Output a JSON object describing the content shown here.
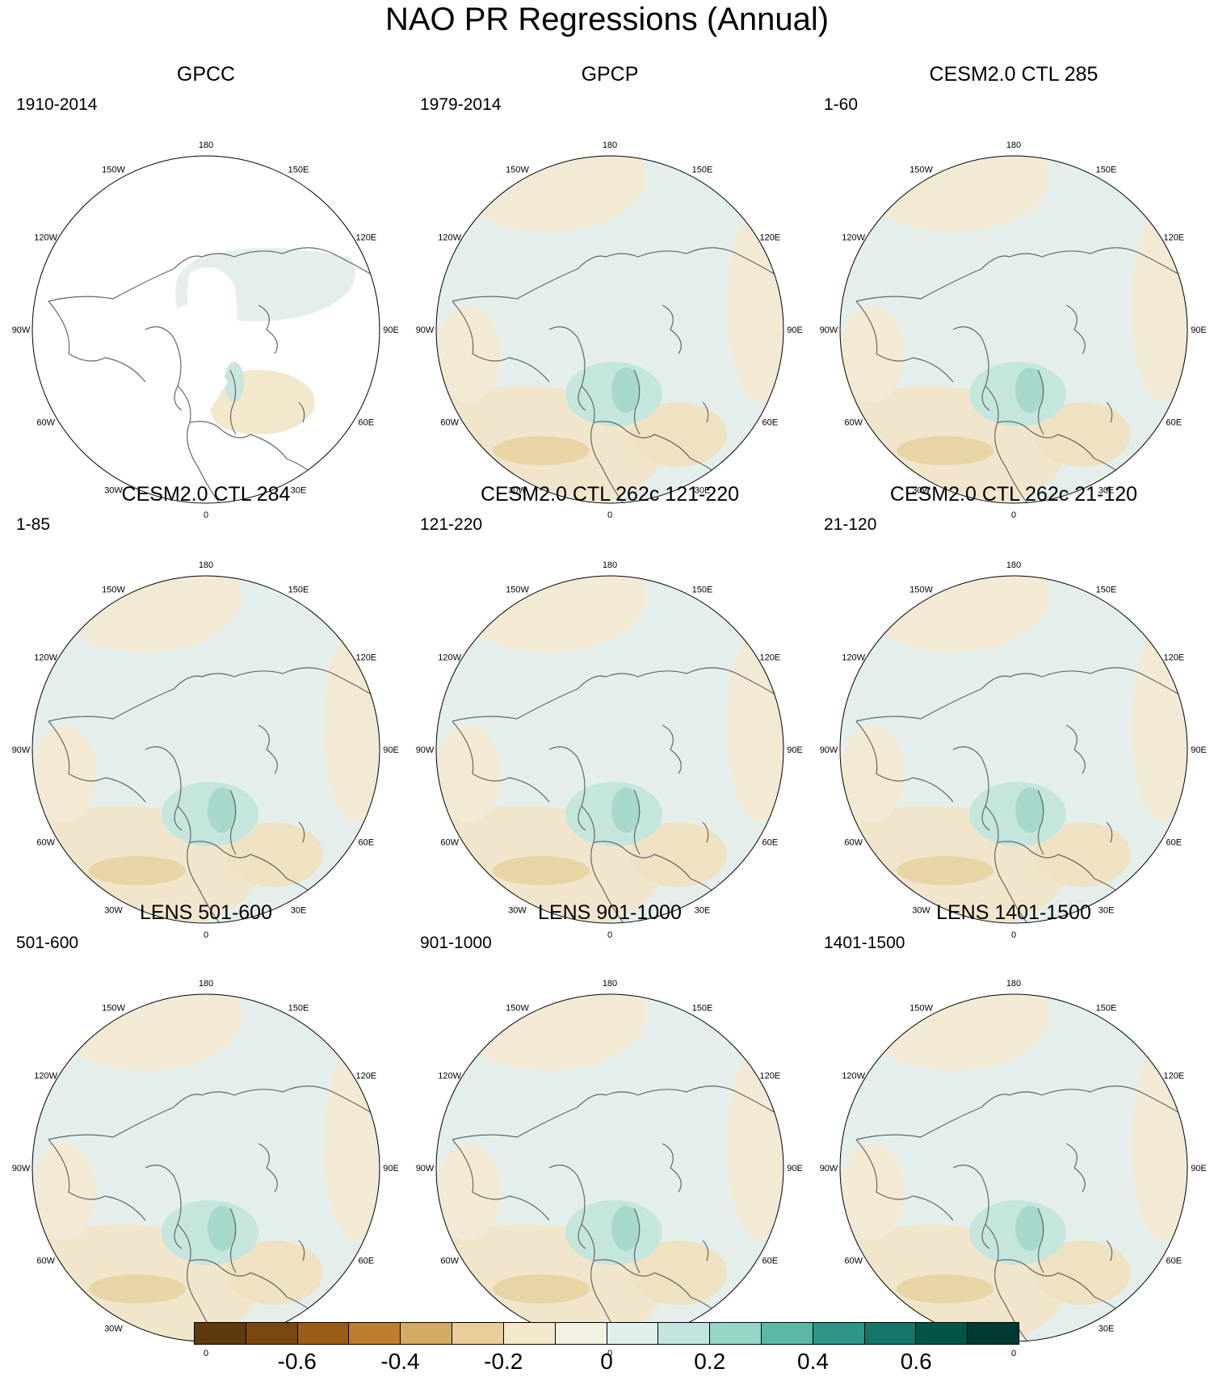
{
  "title": "NAO PR Regressions (Annual)",
  "panels": [
    {
      "title": "GPCC",
      "period": "1910-2014"
    },
    {
      "title": "GPCP",
      "period": "1979-2014"
    },
    {
      "title": "CESM2.0 CTL 285",
      "period": "1-60"
    },
    {
      "title": "CESM2.0 CTL 284",
      "period": "1-85"
    },
    {
      "title": "CESM2.0 CTL 262c 121-220",
      "period": "121-220"
    },
    {
      "title": "CESM2.0 CTL 262c 21-120",
      "period": "21-120"
    },
    {
      "title": "LENS 501-600",
      "period": "501-600"
    },
    {
      "title": "LENS 901-1000",
      "period": "901-1000"
    },
    {
      "title": "LENS 1401-1500",
      "period": "1401-1500"
    }
  ],
  "longitude_labels": [
    "180",
    "150E",
    "120E",
    "90E",
    "60E",
    "30E",
    "0",
    "30W",
    "60W",
    "90W",
    "120W",
    "150W"
  ],
  "colorbar": {
    "colors": [
      "#5e3a0c",
      "#7a4710",
      "#9a5d18",
      "#bd7c2e",
      "#d3ab63",
      "#e8cf99",
      "#f4e8cc",
      "#f3f0e4",
      "#e1efec",
      "#c2e6df",
      "#95d6c7",
      "#5cb8a6",
      "#2f9587",
      "#137668",
      "#035547",
      "#003a30"
    ],
    "labels": [
      "-0.6",
      "-0.4",
      "-0.2",
      "0",
      "0.2",
      "0.4",
      "0.6"
    ]
  }
}
